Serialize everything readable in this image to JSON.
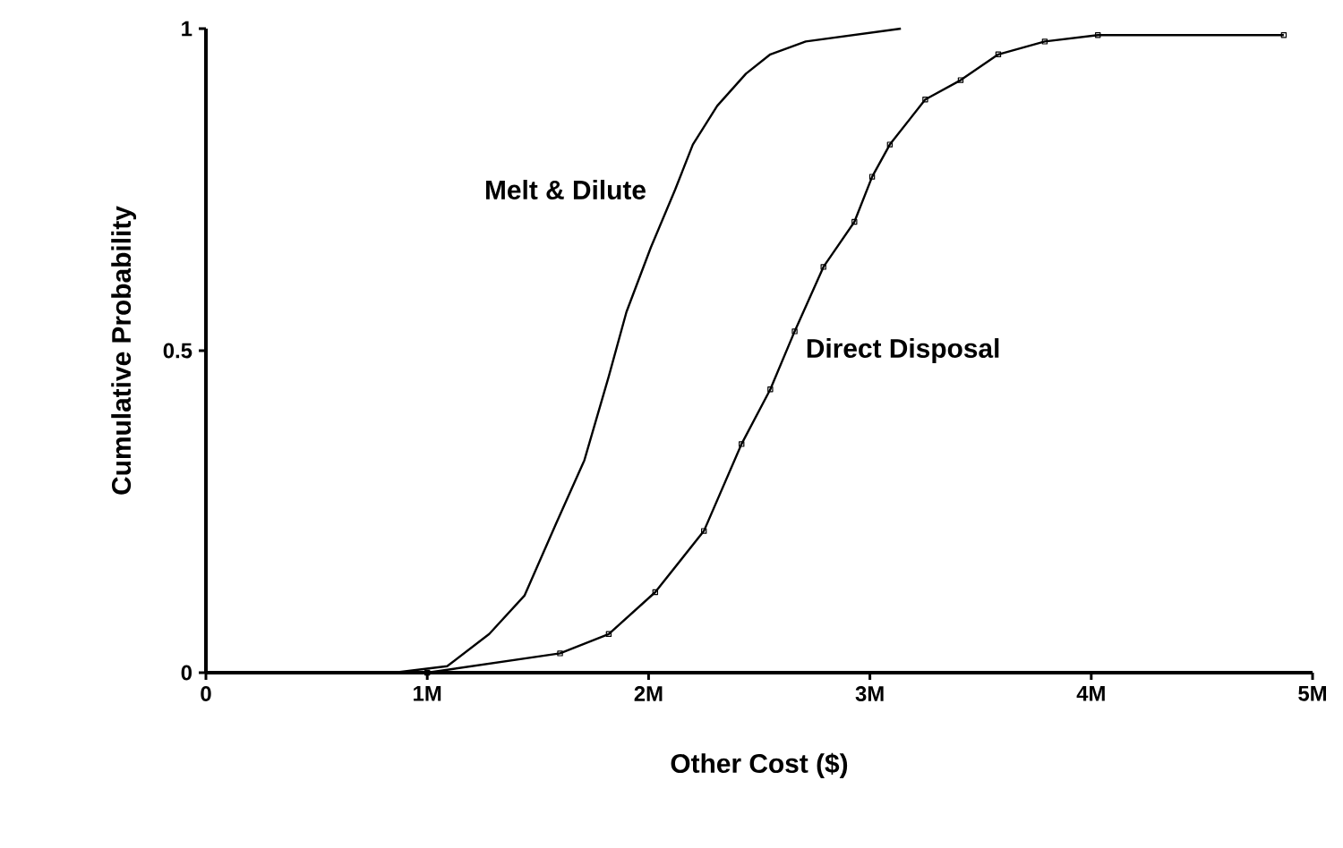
{
  "chart_data": {
    "type": "line",
    "xlabel": "Other Cost ($)",
    "ylabel": "Cumulative Probability",
    "xlim": [
      0,
      5000000
    ],
    "ylim": [
      0,
      1
    ],
    "xticks": [
      {
        "value": 0,
        "label": "0"
      },
      {
        "value": 1000000,
        "label": "1M"
      },
      {
        "value": 2000000,
        "label": "2M"
      },
      {
        "value": 3000000,
        "label": "3M"
      },
      {
        "value": 4000000,
        "label": "4M"
      },
      {
        "value": 5000000,
        "label": "5M"
      }
    ],
    "yticks": [
      0,
      0.5,
      1
    ],
    "series": [
      {
        "name": "Melt & Dilute",
        "color": "#000000",
        "marker": "none",
        "x": [
          0,
          850000,
          1090000,
          1280000,
          1440000,
          1580000,
          1710000,
          1820000,
          1900000,
          2010000,
          2120000,
          2200000,
          2310000,
          2440000,
          2550000,
          2710000,
          3140000
        ],
        "values": [
          0,
          0,
          0.01,
          0.06,
          0.12,
          0.23,
          0.33,
          0.46,
          0.56,
          0.66,
          0.75,
          0.82,
          0.88,
          0.93,
          0.96,
          0.98,
          1
        ]
      },
      {
        "name": "Direct Disposal",
        "color": "#000000",
        "marker": "square",
        "x": [
          1000000,
          1600000,
          1820000,
          2030000,
          2250000,
          2420000,
          2550000,
          2660000,
          2790000,
          2930000,
          3010000,
          3090000,
          3250000,
          3410000,
          3580000,
          3790000,
          4030000,
          4870000
        ],
        "values": [
          0,
          0.03,
          0.06,
          0.125,
          0.22,
          0.355,
          0.44,
          0.53,
          0.63,
          0.7,
          0.77,
          0.82,
          0.89,
          0.92,
          0.96,
          0.98,
          0.99,
          0.99
        ]
      }
    ]
  }
}
